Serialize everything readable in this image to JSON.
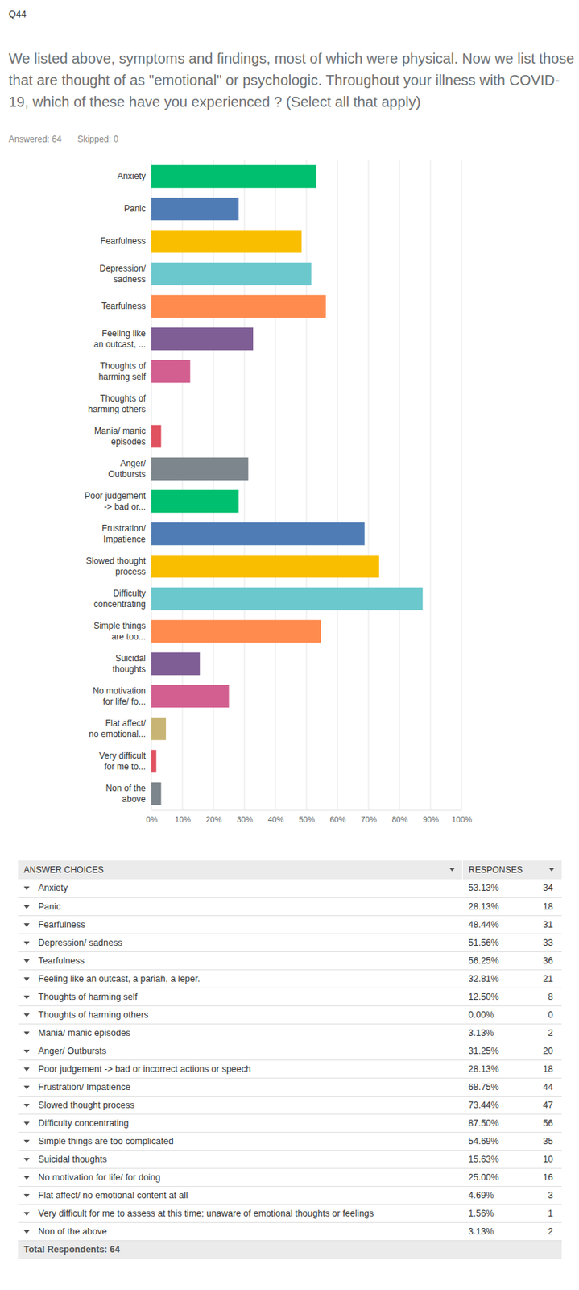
{
  "question": {
    "number": "Q44",
    "text": "We listed above, symptoms and findings, most of which were physical. Now we list those that are thought of as \"emotional\" or psychologic. Throughout your illness with COVID-19, which of these have you experienced ? (Select all that apply)",
    "answered": "Answered: 64",
    "skipped": "Skipped: 0"
  },
  "chart_data": {
    "type": "bar",
    "orientation": "horizontal",
    "categories": [
      "Anxiety",
      "Panic",
      "Fearfulness",
      "Depression/\nsadness",
      "Tearfulness",
      "Feeling like\nan outcast, ...",
      "Thoughts of\nharming self",
      "Thoughts of\nharming others",
      "Mania/ manic\nepisodes",
      "Anger/\nOutbursts",
      "Poor judgement\n-> bad or...",
      "Frustration/\nImpatience",
      "Slowed thought\nprocess",
      "Difficulty\nconcentrating",
      "Simple things\nare too...",
      "Suicidal\nthoughts",
      "No motivation\nfor life/ fo...",
      "Flat affect/\nno emotional...",
      "Very difficult\nfor me to...",
      "Non of the\nabove"
    ],
    "values": [
      53.13,
      28.13,
      48.44,
      51.56,
      56.25,
      32.81,
      12.5,
      0,
      3.13,
      31.25,
      28.13,
      68.75,
      73.44,
      87.5,
      54.69,
      15.63,
      25,
      4.69,
      1.56,
      3.13
    ],
    "colors": [
      "#00bf6f",
      "#507cb6",
      "#f9be00",
      "#6bc8cd",
      "#ff8b4f",
      "#7f5d95",
      "#d25f90",
      "#c8b575",
      "#e05260",
      "#7d868c",
      "#00bf6f",
      "#507cb6",
      "#f9be00",
      "#6bc8cd",
      "#ff8b4f",
      "#7f5d95",
      "#d25f90",
      "#c8b575",
      "#e05260",
      "#7d868c"
    ],
    "xlim": [
      0,
      100
    ],
    "xticks": [
      {
        "value": 0,
        "label": "0%"
      },
      {
        "value": 10,
        "label": "10%"
      },
      {
        "value": 20,
        "label": "20%"
      },
      {
        "value": 30,
        "label": "30%"
      },
      {
        "value": 40,
        "label": "40%"
      },
      {
        "value": 50,
        "label": "50%"
      },
      {
        "value": 60,
        "label": "60%"
      },
      {
        "value": 70,
        "label": "70%"
      },
      {
        "value": 80,
        "label": "80%"
      },
      {
        "value": 90,
        "label": "90%"
      },
      {
        "value": 100,
        "label": "100%"
      }
    ],
    "grid": true
  },
  "table": {
    "header": [
      "ANSWER CHOICES",
      "RESPONSES"
    ],
    "rows": [
      [
        "Anxiety",
        "53.13%",
        34
      ],
      [
        "Panic",
        "28.13%",
        18
      ],
      [
        "Fearfulness",
        "48.44%",
        31
      ],
      [
        "Depression/ sadness",
        "51.56%",
        33
      ],
      [
        "Tearfulness",
        "56.25%",
        36
      ],
      [
        "Feeling like an outcast, a pariah, a leper.",
        "32.81%",
        21
      ],
      [
        "Thoughts of harming self",
        "12.50%",
        8
      ],
      [
        "Thoughts of harming others",
        "0.00%",
        0
      ],
      [
        "Mania/ manic episodes",
        "3.13%",
        2
      ],
      [
        "Anger/ Outbursts",
        "31.25%",
        20
      ],
      [
        "Poor judgement -> bad or incorrect actions or speech",
        "28.13%",
        18
      ],
      [
        "Frustration/ Impatience",
        "68.75%",
        44
      ],
      [
        "Slowed thought process",
        "73.44%",
        47
      ],
      [
        "Difficulty concentrating",
        "87.50%",
        56
      ],
      [
        "Simple things are too complicated",
        "54.69%",
        35
      ],
      [
        "Suicidal thoughts",
        "15.63%",
        10
      ],
      [
        "No motivation for life/ for doing",
        "25.00%",
        16
      ],
      [
        "Flat affect/ no emotional content at all",
        "4.69%",
        3
      ],
      [
        "Very difficult for me to assess at this time; unaware of emotional thoughts or feelings",
        "1.56%",
        1
      ],
      [
        "Non of the above",
        "3.13%",
        2
      ]
    ],
    "total": "Total Respondents: 64"
  }
}
